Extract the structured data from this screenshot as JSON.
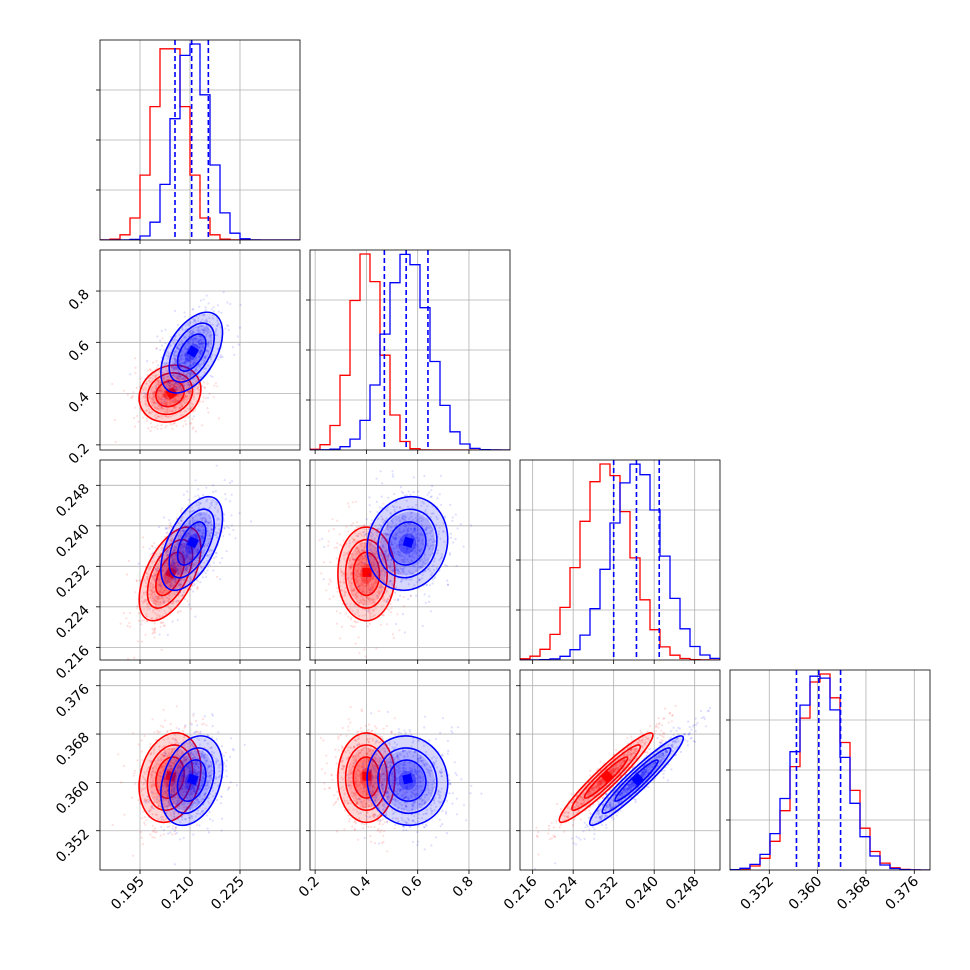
{
  "chart_data": {
    "type": "corner",
    "title": "",
    "grid": true,
    "legend": "none",
    "colors": {
      "series_a": "#ff0000",
      "series_b": "#0000ff"
    },
    "parameters": [
      {
        "range": [
          0.183,
          0.243
        ],
        "ticks": [
          0.195,
          0.21,
          0.225
        ],
        "tick_labels": [
          "0.195",
          "0.210",
          "0.225"
        ]
      },
      {
        "range": [
          0.18,
          0.96
        ],
        "ticks": [
          0.2,
          0.4,
          0.6,
          0.8
        ],
        "tick_labels": [
          "0.2",
          "0.4",
          "0.6",
          "0.8"
        ]
      },
      {
        "range": [
          0.2135,
          0.253
        ],
        "ticks": [
          0.216,
          0.224,
          0.232,
          0.24,
          0.248
        ],
        "tick_labels": [
          "0.216",
          "0.224",
          "0.232",
          "0.240",
          "0.248"
        ]
      },
      {
        "range": [
          0.3455,
          0.3786
        ],
        "ticks": [
          0.352,
          0.36,
          0.368,
          0.376
        ],
        "tick_labels": [
          "0.352",
          "0.360",
          "0.368",
          "0.376"
        ]
      }
    ],
    "series": [
      {
        "color": "#ff0000",
        "means": [
          0.204,
          0.4,
          0.2305,
          0.3608
        ],
        "sds": [
          0.005,
          0.06,
          0.005,
          0.004
        ]
      },
      {
        "color": "#0000ff",
        "means": [
          0.2105,
          0.56,
          0.2365,
          0.3603
        ],
        "sds": [
          0.005,
          0.085,
          0.005,
          0.004
        ]
      }
    ],
    "correlations": {
      "series_a": {
        "0-1": 0.15,
        "0-2": 0.55,
        "0-3": 0.2,
        "1-2": 0.0,
        "1-3": 0.0,
        "2-3": 0.95
      },
      "series_b": {
        "0-1": 0.5,
        "0-2": 0.55,
        "0-3": 0.3,
        "1-2": 0.1,
        "1-3": -0.05,
        "2-3": 0.95
      }
    },
    "quantile_lines": {
      "color": "#0000ff",
      "values": [
        [
          0.2055,
          0.2105,
          0.2155
        ],
        [
          0.47,
          0.555,
          0.64
        ],
        [
          0.232,
          0.2365,
          0.241
        ],
        [
          0.3565,
          0.3602,
          0.3638
        ]
      ]
    }
  }
}
